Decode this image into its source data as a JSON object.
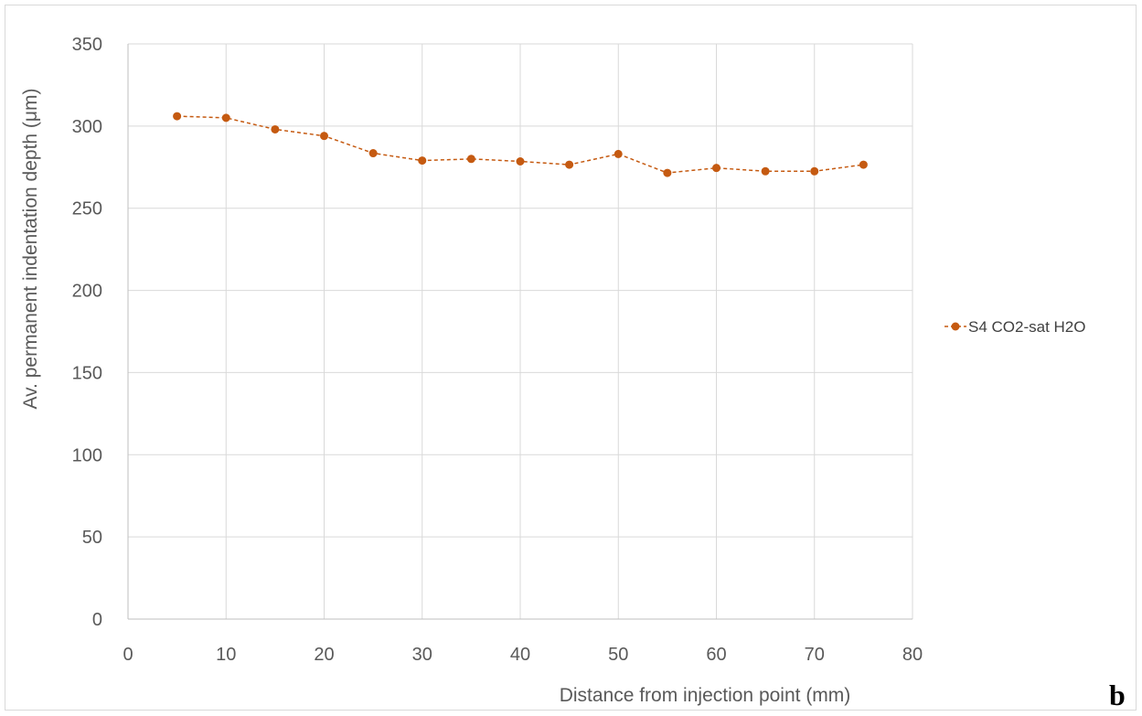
{
  "chart_data": {
    "type": "line",
    "title": "",
    "xlabel": "Distance from injection point (mm)",
    "ylabel": "Av. permanent indentation depth (μm)",
    "xlim": [
      0,
      80
    ],
    "ylim": [
      0,
      350
    ],
    "xticks": [
      0,
      10,
      20,
      30,
      40,
      50,
      60,
      70,
      80
    ],
    "yticks": [
      0,
      50,
      100,
      150,
      200,
      250,
      300,
      350
    ],
    "grid": true,
    "legend_position": "right",
    "series": [
      {
        "name": "S4 CO2-sat H2O",
        "color": "#c55a11",
        "line_style": "dashed",
        "marker": "circle",
        "x": [
          5,
          10,
          15,
          20,
          25,
          30,
          35,
          40,
          45,
          50,
          55,
          60,
          65,
          70,
          75
        ],
        "y": [
          306,
          305,
          298,
          294,
          283.5,
          279,
          280,
          278.5,
          276.5,
          283,
          271.5,
          274.5,
          272.5,
          272.5,
          276.5
        ]
      }
    ]
  },
  "panel_label": "b"
}
